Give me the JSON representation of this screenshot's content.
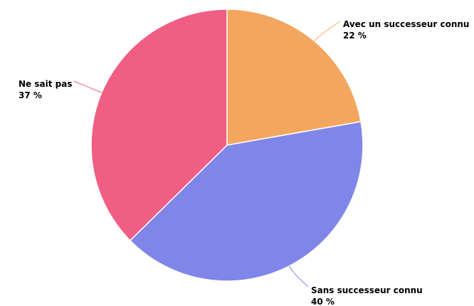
{
  "chart_data": {
    "type": "pie",
    "start_angle_deg": 0,
    "direction": "clockwise",
    "slices": [
      {
        "label": "Avec un successeur connu",
        "value": 22,
        "display_value": "22 %",
        "color": "#f4a55e"
      },
      {
        "label": "Sans successeur connu",
        "value": 40,
        "display_value": "40 %",
        "color": "#8086e8"
      },
      {
        "label": "Ne sait pas",
        "value": 37,
        "display_value": "37 %",
        "color": "#f15e83"
      }
    ]
  }
}
